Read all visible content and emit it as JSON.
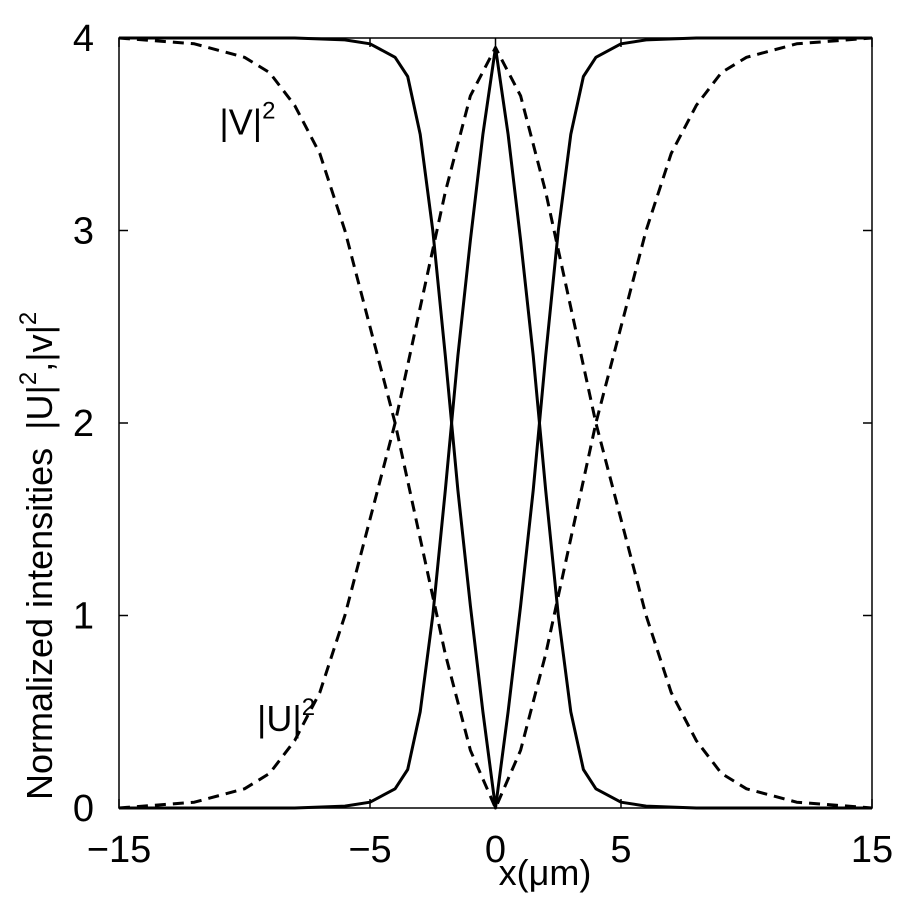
{
  "chart_data": {
    "type": "line",
    "title": "",
    "xlabel": "x(μm)",
    "ylabel": "Normalized intensities",
    "ylabel_symbol": {
      "base1": "|U|",
      "exp1": "2",
      "sep": ",",
      "base2": "|v|",
      "exp2": "2"
    },
    "xlim": [
      -15,
      15
    ],
    "ylim": [
      0,
      4
    ],
    "x_ticks": [
      -15,
      -5,
      0,
      5,
      15
    ],
    "x_tick_labels": [
      "−15",
      "−5",
      "0",
      "5",
      "15"
    ],
    "y_ticks": [
      0,
      1,
      2,
      3,
      4
    ],
    "y_tick_labels": [
      "0",
      "1",
      "2",
      "3",
      "4"
    ],
    "grid": false,
    "annotations": [
      {
        "base": "|V|",
        "exp": "2",
        "x": -11,
        "y": 3.5
      },
      {
        "base": "|U|",
        "exp": "2",
        "x": -9.5,
        "y": 0.4
      }
    ],
    "series": [
      {
        "style": "solid",
        "x": [
          -15,
          -8,
          -6,
          -5,
          -4,
          -3.5,
          -3,
          -2.5,
          -2,
          -1.5,
          -1,
          -0.5,
          0,
          0.5,
          1,
          1.5,
          2,
          2.5,
          3,
          3.5,
          4,
          5,
          6,
          8,
          15
        ],
        "y": [
          4,
          4,
          3.99,
          3.97,
          3.9,
          3.8,
          3.5,
          3.0,
          2.35,
          1.65,
          1.05,
          0.5,
          0,
          0.5,
          1.05,
          1.65,
          2.35,
          3.0,
          3.5,
          3.8,
          3.9,
          3.97,
          3.99,
          4,
          4
        ]
      },
      {
        "style": "solid",
        "x": [
          -15,
          -8,
          -6,
          -5,
          -4,
          -3.5,
          -3,
          -2.5,
          -2,
          -1.5,
          -1,
          -0.5,
          0,
          0.5,
          1,
          1.5,
          2,
          2.5,
          3,
          3.5,
          4,
          5,
          6,
          8,
          15
        ],
        "y": [
          0,
          0,
          0.01,
          0.03,
          0.1,
          0.2,
          0.5,
          1.0,
          1.65,
          2.35,
          2.95,
          3.5,
          3.95,
          3.5,
          2.95,
          2.35,
          1.65,
          1.0,
          0.5,
          0.2,
          0.1,
          0.03,
          0.01,
          0,
          0
        ]
      },
      {
        "style": "dashed",
        "x": [
          -15,
          -12,
          -10,
          -9,
          -8,
          -7,
          -6,
          -5,
          -4,
          -3,
          -2,
          -1,
          0,
          1,
          2,
          3,
          4,
          5,
          6,
          7,
          8,
          9,
          10,
          12,
          15
        ],
        "y": [
          4,
          3.97,
          3.9,
          3.82,
          3.65,
          3.4,
          3.0,
          2.5,
          2.0,
          1.4,
          0.8,
          0.3,
          0,
          0.3,
          0.8,
          1.4,
          2.0,
          2.5,
          3.0,
          3.4,
          3.65,
          3.82,
          3.9,
          3.97,
          4
        ]
      },
      {
        "style": "dashed",
        "x": [
          -15,
          -12,
          -10,
          -9,
          -8,
          -7,
          -6,
          -5,
          -4,
          -3,
          -2,
          -1,
          0,
          1,
          2,
          3,
          4,
          5,
          6,
          7,
          8,
          9,
          10,
          12,
          15
        ],
        "y": [
          0,
          0.03,
          0.1,
          0.18,
          0.35,
          0.6,
          1.0,
          1.5,
          2.0,
          2.6,
          3.2,
          3.7,
          3.95,
          3.7,
          3.2,
          2.6,
          2.0,
          1.5,
          1.0,
          0.6,
          0.35,
          0.18,
          0.1,
          0.03,
          0
        ]
      }
    ]
  }
}
